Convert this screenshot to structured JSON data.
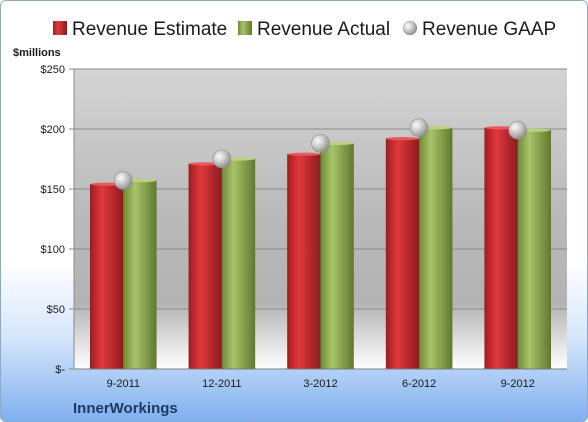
{
  "chart_data": {
    "type": "bar",
    "company": "InnerWorkings",
    "ylabel": "$millions",
    "categories": [
      "9-2011",
      "12-2011",
      "3-2012",
      "6-2012",
      "9-2012"
    ],
    "series": [
      {
        "name": "Revenue Estimate",
        "type": "bar",
        "values": [
          154,
          171,
          179,
          192,
          201
        ]
      },
      {
        "name": "Revenue Actual",
        "type": "bar",
        "values": [
          157,
          175,
          188,
          201,
          199
        ]
      },
      {
        "name": "Revenue GAAP",
        "type": "marker",
        "values": [
          157,
          175,
          188,
          201,
          199
        ]
      }
    ],
    "yticks": [
      0,
      50,
      100,
      150,
      200,
      250
    ],
    "ytick_labels": [
      "$-",
      "$50",
      "$100",
      "$150",
      "$200",
      "$250"
    ],
    "ylim": [
      0,
      250
    ],
    "grid": true,
    "legend_position": "top",
    "colors": {
      "estimate": "#c0282d",
      "actual": "#8faa4e",
      "gaap": "#b8b8b8"
    }
  }
}
